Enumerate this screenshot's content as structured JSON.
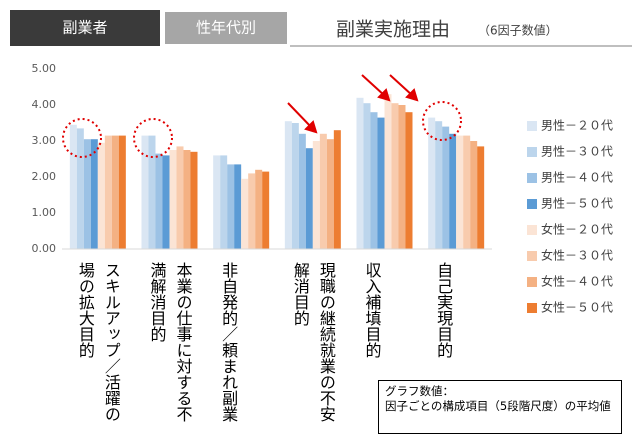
{
  "tabs": [
    "副業者",
    "性年代別"
  ],
  "note": [
    "グラフ数値：",
    "因子ごとの構成項目（5段階尺度）の平均値"
  ],
  "chart_data": {
    "type": "bar",
    "title": "副業実施理由",
    "subtitle": "（6因子数値）",
    "categories": [
      "スキルアップ／活躍の場の拡大目的",
      "本業の仕事に対する不満解消目的",
      "非自発的／頼まれ副業",
      "現職の継続就業の不安解消目的",
      "収入補填目的",
      "自己実現目的"
    ],
    "series": [
      {
        "name": "男性－２０代",
        "color": "#dae6f3",
        "values": [
          3.45,
          3.15,
          2.6,
          3.55,
          4.2,
          3.65
        ]
      },
      {
        "name": "男性－３０代",
        "color": "#bcd5ec",
        "values": [
          3.35,
          3.15,
          2.6,
          3.5,
          4.05,
          3.55
        ]
      },
      {
        "name": "男性－４０代",
        "color": "#9cc2e5",
        "values": [
          3.05,
          2.65,
          2.35,
          3.2,
          3.8,
          3.4
        ]
      },
      {
        "name": "男性－５０代",
        "color": "#5b9bd5",
        "values": [
          3.05,
          2.6,
          2.35,
          2.8,
          3.65,
          3.2
        ]
      },
      {
        "name": "女性－２０代",
        "color": "#fbe4d5",
        "values": [
          2.95,
          2.75,
          1.95,
          3.0,
          4.3,
          3.15
        ]
      },
      {
        "name": "女性－３０代",
        "color": "#f8cbad",
        "values": [
          3.15,
          2.85,
          2.1,
          3.2,
          4.05,
          3.15
        ]
      },
      {
        "name": "女性－４０代",
        "color": "#f4b183",
        "values": [
          3.15,
          2.75,
          2.2,
          3.05,
          4.0,
          3.0
        ]
      },
      {
        "name": "女性－５０代",
        "color": "#ed7d31",
        "values": [
          3.15,
          2.7,
          2.15,
          3.3,
          3.8,
          2.85
        ]
      }
    ],
    "ylim": [
      0,
      5
    ],
    "yticks": [
      {
        "value": 0,
        "label": "0.00"
      },
      {
        "value": 1,
        "label": "1.00"
      },
      {
        "value": 2,
        "label": "2.00"
      },
      {
        "value": 3,
        "label": "3.00"
      },
      {
        "value": 4,
        "label": "4.00"
      },
      {
        "value": 5,
        "label": "5.00"
      }
    ],
    "grid": false,
    "legend": "right"
  }
}
